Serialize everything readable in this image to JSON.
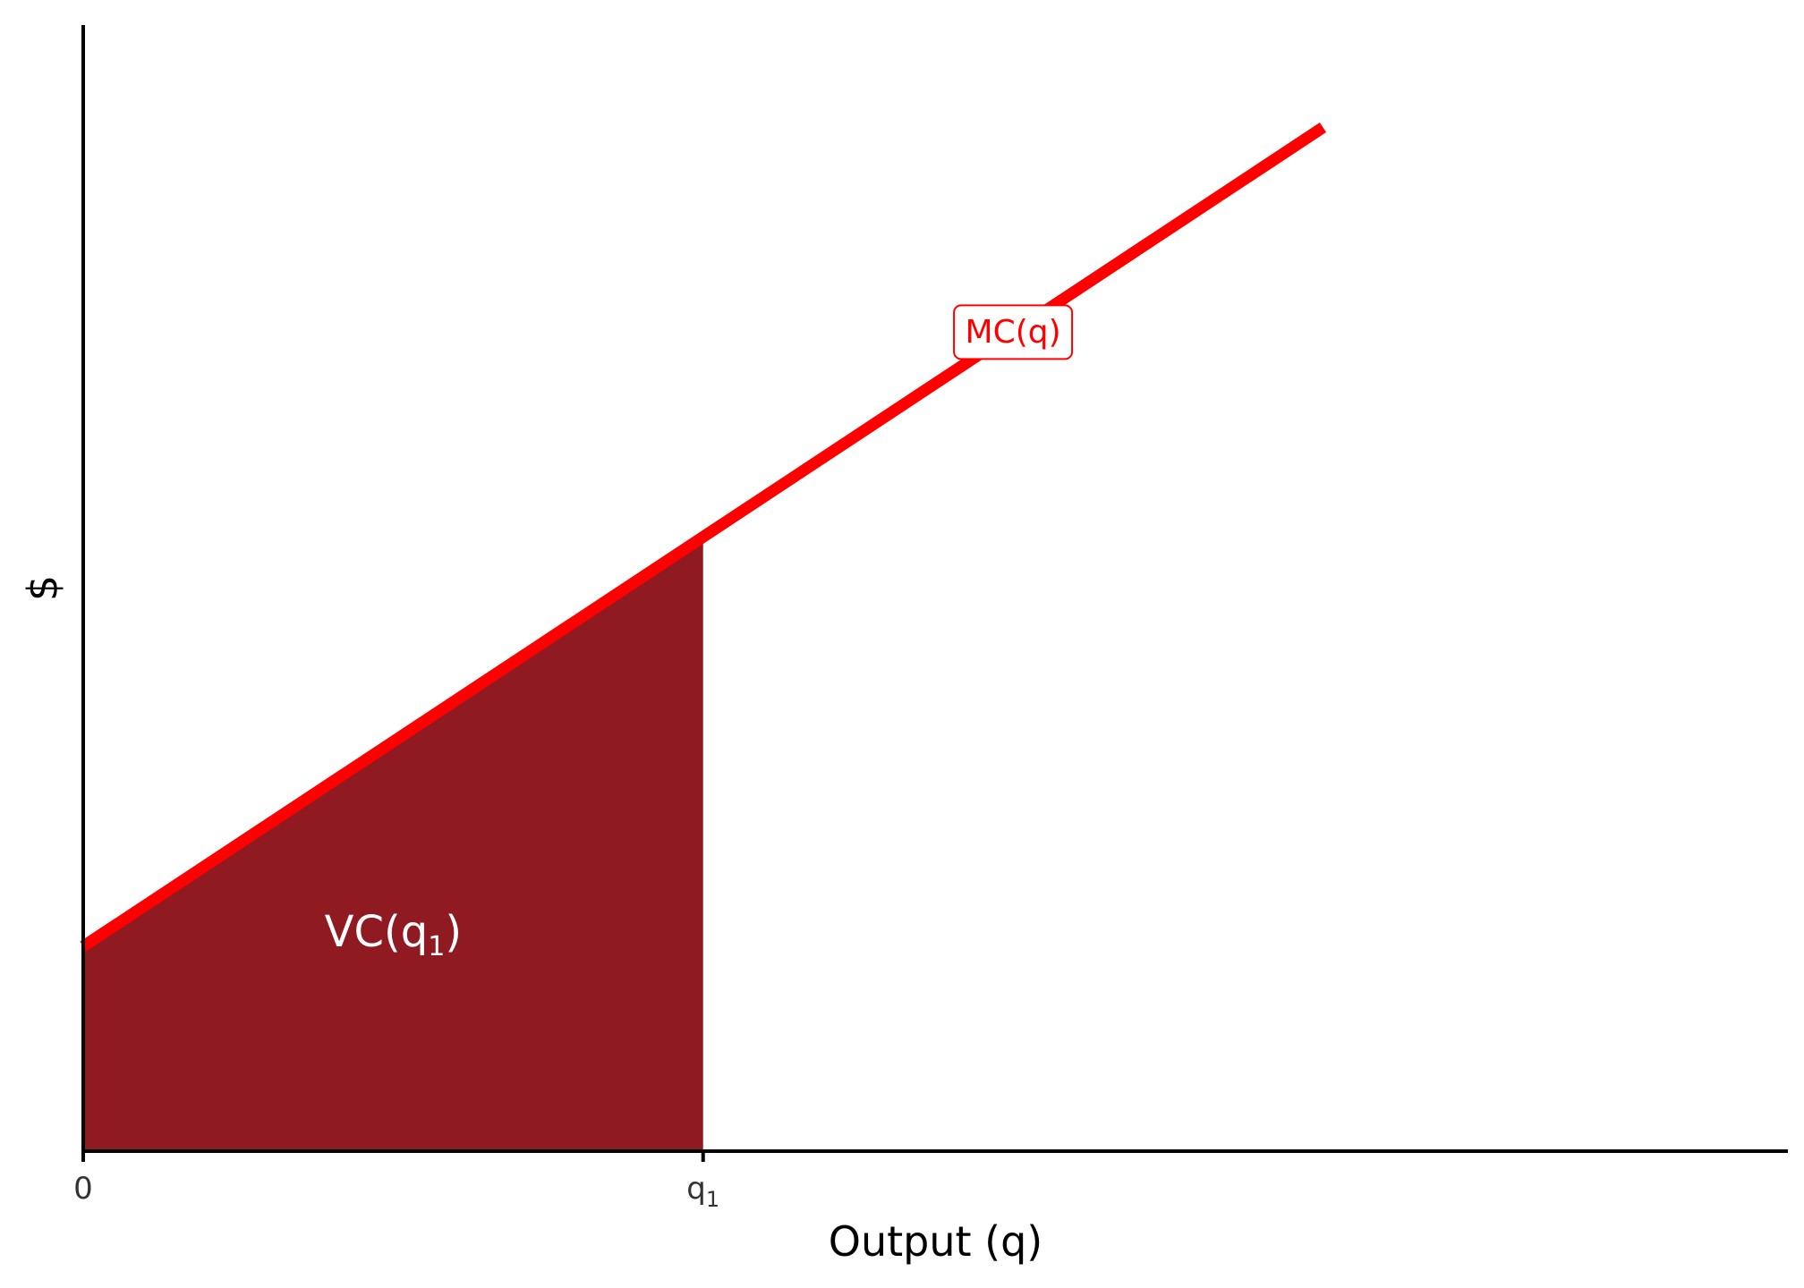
{
  "chart_data": {
    "type": "area",
    "title": "",
    "xlabel": "Output (q)",
    "ylabel": "$",
    "xlim": [
      0,
      11
    ],
    "ylim": [
      0,
      11
    ],
    "grid": false,
    "x_ticks": [
      {
        "value": 0,
        "label": "0",
        "subscript": ""
      },
      {
        "value": 4,
        "label": "q",
        "subscript": "1"
      }
    ],
    "series": [
      {
        "name": "MC(q)",
        "type": "line",
        "color": "#FF0000",
        "x": [
          0,
          8
        ],
        "y": [
          2,
          10
        ]
      }
    ],
    "shaded_area": {
      "label": "VC(q",
      "label_subscript": "1",
      "label_suffix": ")",
      "color": "#8F1A21",
      "x_from": 0,
      "x_to": 4,
      "label_x": 2,
      "label_y": 2
    },
    "curve_label": {
      "text": "MC(q)",
      "color": "#FF0000",
      "x": 6,
      "y": 8
    }
  }
}
